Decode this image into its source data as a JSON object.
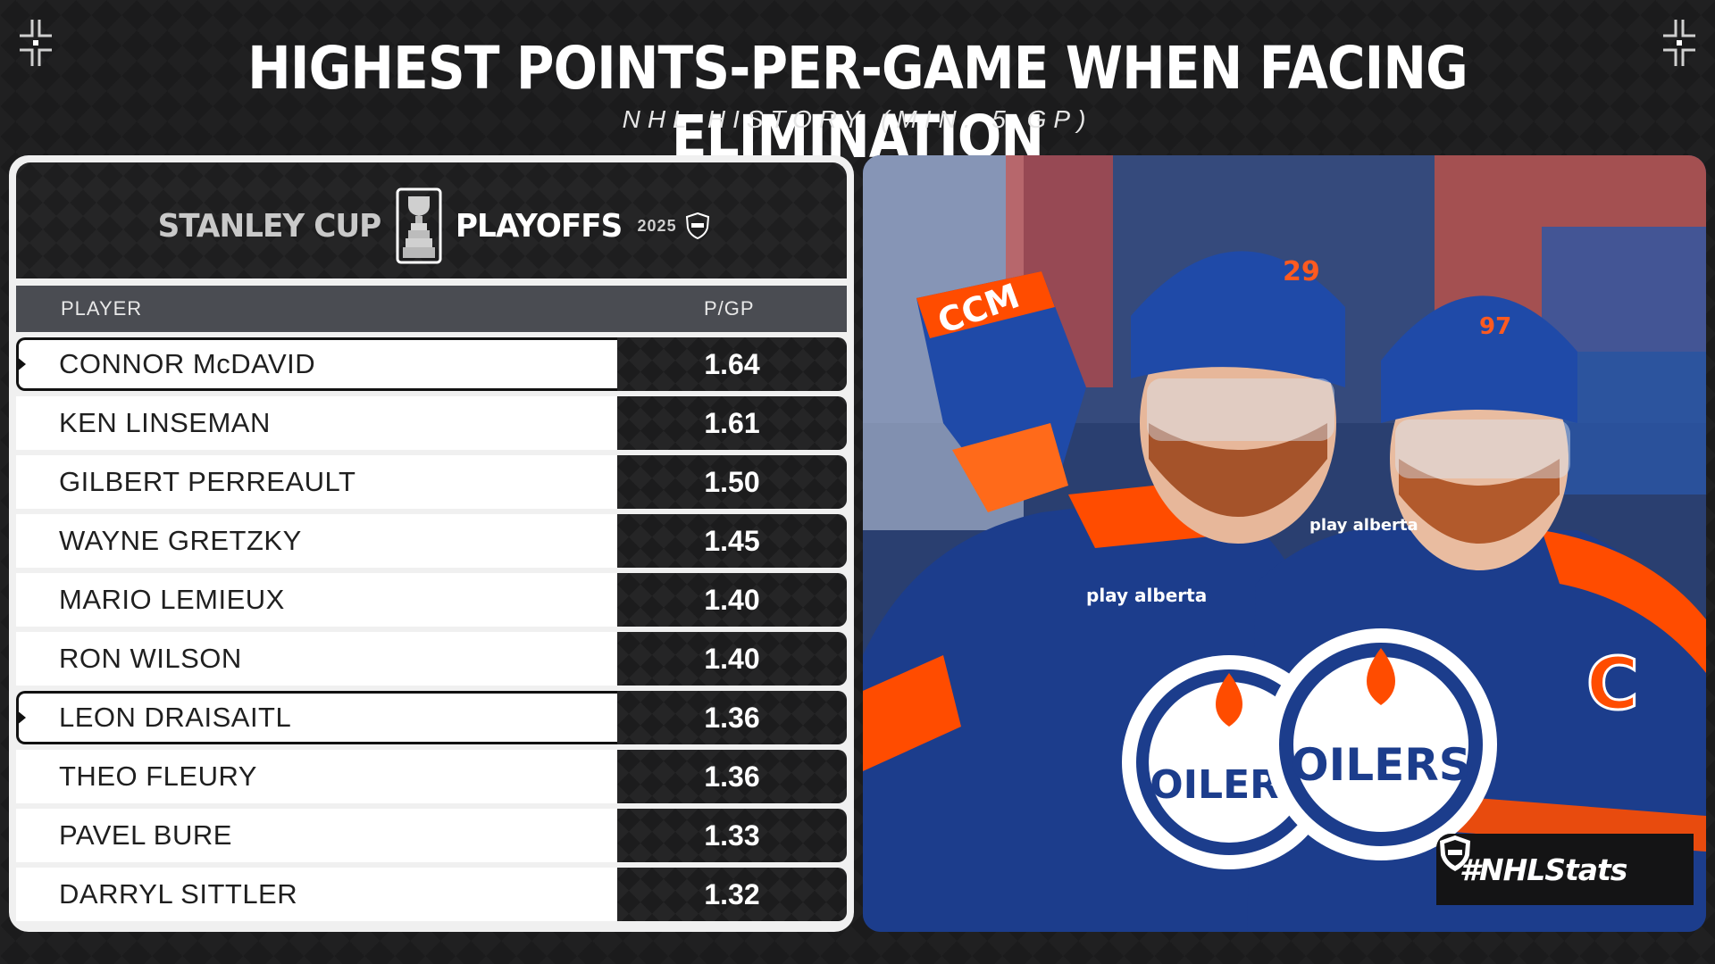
{
  "title": "HIGHEST POINTS-PER-GAME WHEN FACING ELIMINATION",
  "subtitle": "NHL HISTORY (MIN. 5 GP)",
  "logo": {
    "left_text": "STANLEY CUP",
    "right_text": "PLAYOFFS",
    "year": "2025"
  },
  "table": {
    "col_player": "PLAYER",
    "col_pgp": "P/GP",
    "rows": [
      {
        "name": "CONNOR McDAVID",
        "value": "1.64",
        "highlight": true
      },
      {
        "name": "KEN LINSEMAN",
        "value": "1.61",
        "highlight": false
      },
      {
        "name": "GILBERT PERREAULT",
        "value": "1.50",
        "highlight": false
      },
      {
        "name": "WAYNE GRETZKY",
        "value": "1.45",
        "highlight": false
      },
      {
        "name": "MARIO LEMIEUX",
        "value": "1.40",
        "highlight": false
      },
      {
        "name": "RON WILSON",
        "value": "1.40",
        "highlight": false
      },
      {
        "name": "LEON DRAISAITL",
        "value": "1.36",
        "highlight": true
      },
      {
        "name": "THEO FLEURY",
        "value": "1.36",
        "highlight": false
      },
      {
        "name": "PAVEL BURE",
        "value": "1.33",
        "highlight": false
      },
      {
        "name": "DARRYL SITTLER",
        "value": "1.32",
        "highlight": false
      }
    ]
  },
  "photo": {
    "jersey_numbers": [
      "29",
      "97"
    ],
    "helmet_brand": "CCM",
    "team_logo_text": "OILERS",
    "captain_letter": "C",
    "sponsor": "play alberta"
  },
  "hashtag": "#NHLStats",
  "colors": {
    "background": "#1b1b1c",
    "oilers_blue": "#1c3d8c",
    "oilers_orange": "#ff4c00"
  }
}
